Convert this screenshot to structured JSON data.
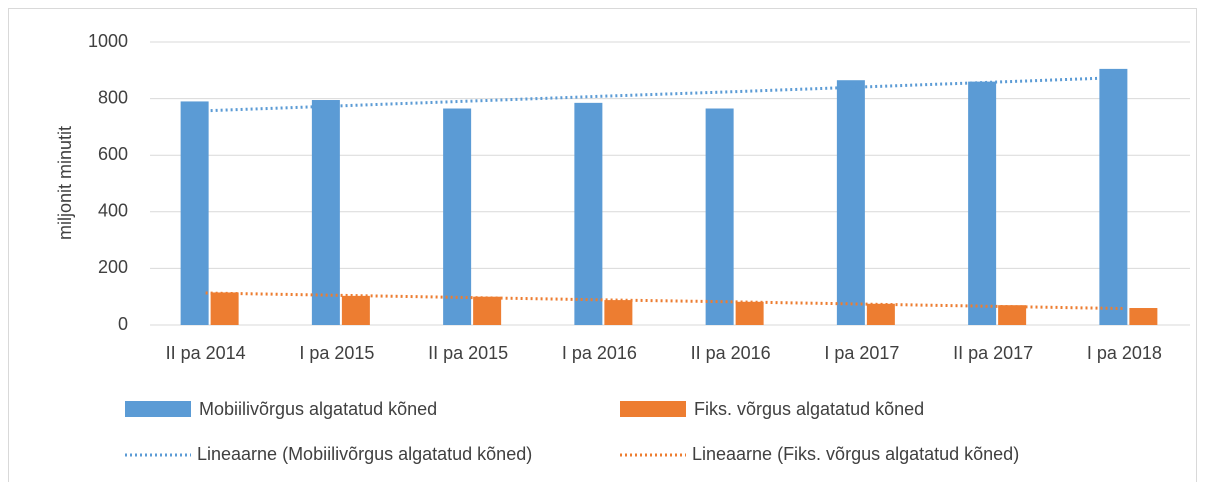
{
  "chart_data": {
    "type": "bar",
    "y_label": "miljonit minutit",
    "categories": [
      "II pa 2014",
      "I pa 2015",
      "II pa 2015",
      "I pa 2016",
      "II pa 2016",
      "I pa 2017",
      "II pa 2017",
      "I pa 2018"
    ],
    "series": [
      {
        "name": "Mobiilivõrgus algatatud kõned",
        "color": "#5b9bd5",
        "values": [
          790,
          795,
          765,
          785,
          765,
          865,
          860,
          905
        ]
      },
      {
        "name": "Fiks. võrgus algatatud kõned",
        "color": "#ed7d31",
        "values": [
          115,
          103,
          100,
          88,
          82,
          75,
          70,
          60
        ]
      }
    ],
    "trendlines": [
      {
        "name": "Lineaarne (Mobiilivõrgus algatatud kõned)",
        "color": "#5b9bd5",
        "values": [
          757,
          774,
          791,
          808,
          824,
          841,
          858,
          875
        ]
      },
      {
        "name": "Lineaarne (Fiks. võrgus algatatud kõned)",
        "color": "#ed7d31",
        "values": [
          113,
          105,
          97,
          89,
          82,
          74,
          66,
          58
        ]
      }
    ],
    "ylim": [
      0,
      1000
    ],
    "yticks": [
      0,
      200,
      400,
      600,
      800,
      1000
    ],
    "grid": true
  }
}
